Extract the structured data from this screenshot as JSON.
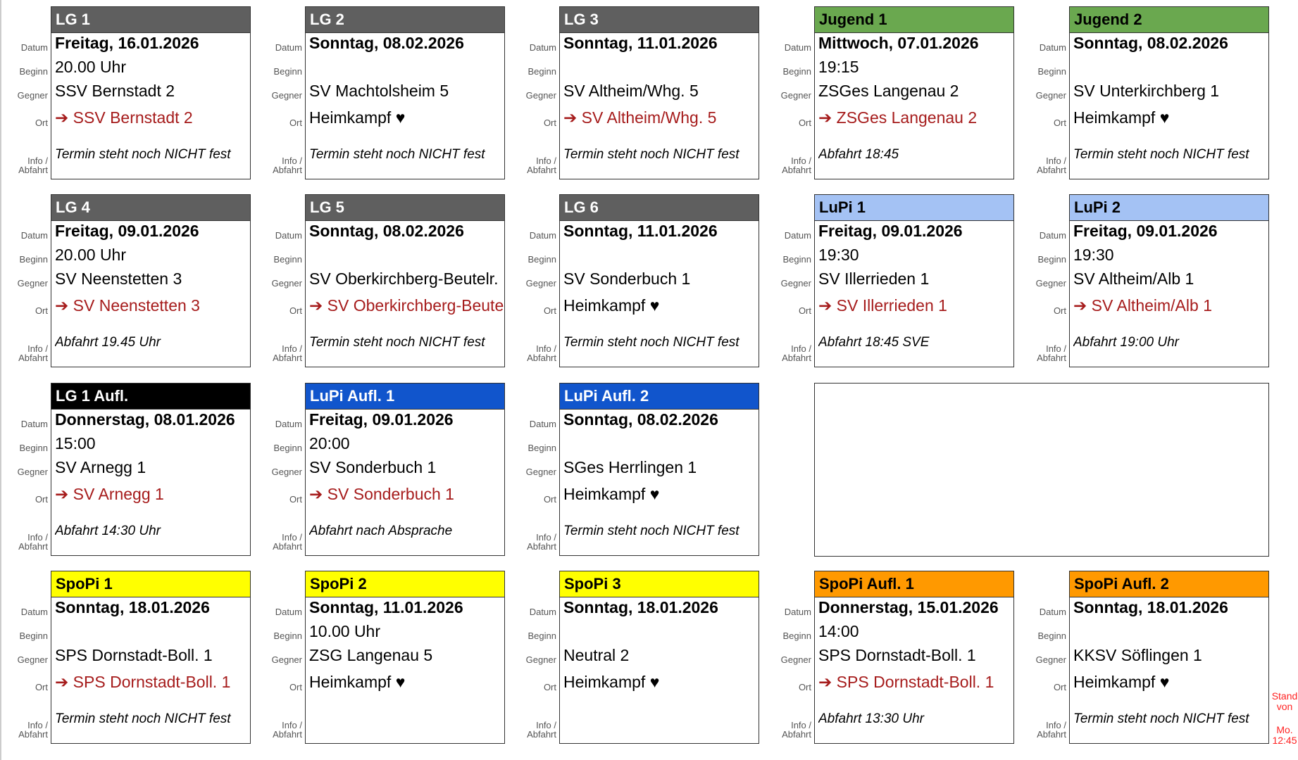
{
  "labels": {
    "date": "Datum",
    "time": "Beginn",
    "opponent": "Gegner",
    "location": "Ort",
    "info": "Info /",
    "info2": "Abfahrt"
  },
  "away_arrow": "➔",
  "home_heart": "♥",
  "cards": [
    {
      "title": "LG 1",
      "header_bg": "#5f5f5f",
      "header_fg": "#ffffff",
      "date": "Freitag, 16.01.2026",
      "time": "20.00 Uhr",
      "opponent": "SSV Bernstadt 2",
      "location": "SSV Bernstadt 2",
      "home": false,
      "info": "Termin steht noch NICHT fest"
    },
    {
      "title": "LG 2",
      "header_bg": "#5f5f5f",
      "header_fg": "#ffffff",
      "date": "Sonntag, 08.02.2026",
      "time": "",
      "opponent": "SV Machtolsheim 5",
      "location": "Heimkampf",
      "home": true,
      "info": "Termin steht noch NICHT fest"
    },
    {
      "title": "LG 3",
      "header_bg": "#5f5f5f",
      "header_fg": "#ffffff",
      "date": "Sonntag, 11.01.2026",
      "time": "",
      "opponent": "SV Altheim/Whg. 5",
      "location": "SV Altheim/Whg. 5",
      "home": false,
      "info": "Termin steht noch NICHT fest"
    },
    {
      "title": "Jugend 1",
      "header_bg": "#6aa84f",
      "header_fg": "#000000",
      "date": "Mittwoch, 07.01.2026",
      "time": "19:15",
      "opponent": "ZSGes Langenau 2",
      "location": "ZSGes Langenau 2",
      "home": false,
      "info": "Abfahrt 18:45"
    },
    {
      "title": "Jugend 2",
      "header_bg": "#6aa84f",
      "header_fg": "#000000",
      "date": "Sonntag, 08.02.2026",
      "time": "",
      "opponent": "SV Unterkirchberg 1",
      "location": "Heimkampf",
      "home": true,
      "info": "Termin steht noch NICHT fest"
    },
    {
      "title": "LG 4",
      "header_bg": "#5f5f5f",
      "header_fg": "#ffffff",
      "date": "Freitag, 09.01.2026",
      "time": "20.00 Uhr",
      "opponent": "SV Neenstetten 3",
      "location": "SV Neenstetten 3",
      "home": false,
      "info": "Abfahrt 19.45 Uhr"
    },
    {
      "title": "LG 5",
      "header_bg": "#5f5f5f",
      "header_fg": "#ffffff",
      "date": "Sonntag, 08.02.2026",
      "time": "",
      "opponent": "SV Oberkirchberg-Beutelr.",
      "location": "SV Oberkirchberg-Beutelr.",
      "home": false,
      "info": "Termin steht noch NICHT fest"
    },
    {
      "title": "LG 6",
      "header_bg": "#5f5f5f",
      "header_fg": "#ffffff",
      "date": "Sonntag, 11.01.2026",
      "time": "",
      "opponent": "SV Sonderbuch 1",
      "location": "Heimkampf",
      "home": true,
      "info": "Termin steht noch NICHT fest"
    },
    {
      "title": "LuPi 1",
      "header_bg": "#a4c2f4",
      "header_fg": "#000000",
      "date": "Freitag, 09.01.2026",
      "time": "19:30",
      "opponent": "SV Illerrieden 1",
      "location": "SV Illerrieden 1",
      "home": false,
      "info": "Abfahrt 18:45 SVE"
    },
    {
      "title": "LuPi 2",
      "header_bg": "#a4c2f4",
      "header_fg": "#000000",
      "date": "Freitag, 09.01.2026",
      "time": "19:30",
      "opponent": "SV Altheim/Alb 1",
      "location": "SV Altheim/Alb 1",
      "home": false,
      "info": "Abfahrt 19:00 Uhr"
    },
    {
      "title": "LG 1 Aufl.",
      "header_bg": "#000000",
      "header_fg": "#ffffff",
      "date": "Donnerstag, 08.01.2026",
      "time": "15:00",
      "opponent": "SV Arnegg 1",
      "location": "SV Arnegg 1",
      "home": false,
      "info": "Abfahrt 14:30 Uhr"
    },
    {
      "title": "LuPi Aufl. 1",
      "header_bg": "#1155cc",
      "header_fg": "#ffffff",
      "date": "Freitag, 09.01.2026",
      "time": "20:00",
      "opponent": "SV Sonderbuch 1",
      "location": "SV Sonderbuch 1",
      "home": false,
      "info": "Abfahrt nach Absprache"
    },
    {
      "title": "LuPi Aufl. 2",
      "header_bg": "#1155cc",
      "header_fg": "#ffffff",
      "date": "Sonntag, 08.02.2026",
      "time": "",
      "opponent": "SGes Herrlingen 1",
      "location": "Heimkampf",
      "home": true,
      "info": "Termin steht noch NICHT fest"
    },
    null,
    null,
    {
      "title": "SpoPi 1",
      "header_bg": "#ffff00",
      "header_fg": "#000000",
      "date": "Sonntag, 18.01.2026",
      "time": "",
      "opponent": "SPS Dornstadt-Boll. 1",
      "location": "SPS Dornstadt-Boll. 1",
      "home": false,
      "info": "Termin steht noch NICHT fest"
    },
    {
      "title": "SpoPi 2",
      "header_bg": "#ffff00",
      "header_fg": "#000000",
      "date": "Sonntag, 11.01.2026",
      "time": "10.00 Uhr",
      "opponent": "ZSG Langenau 5",
      "location": "Heimkampf",
      "home": true,
      "info": ""
    },
    {
      "title": "SpoPi 3",
      "header_bg": "#ffff00",
      "header_fg": "#000000",
      "date": "Sonntag, 18.01.2026",
      "time": "",
      "opponent": "Neutral 2",
      "location": "Heimkampf",
      "home": true,
      "info": ""
    },
    {
      "title": "SpoPi Aufl. 1",
      "header_bg": "#ff9900",
      "header_fg": "#000000",
      "date": "Donnerstag, 15.01.2026",
      "time": "14:00",
      "opponent": "SPS Dornstadt-Boll. 1",
      "location": "SPS Dornstadt-Boll. 1",
      "home": false,
      "info": "Abfahrt 13:30 Uhr"
    },
    {
      "title": "SpoPi Aufl. 2",
      "header_bg": "#ff9900",
      "header_fg": "#000000",
      "date": "Sonntag, 18.01.2026",
      "time": "",
      "opponent": "KKSV Söflingen 1",
      "location": "Heimkampf",
      "home": true,
      "info": "Termin steht noch NICHT fest"
    }
  ],
  "stand": {
    "line1": "Stand",
    "line2": "von",
    "line3": "Mo.",
    "line4": "12:45"
  }
}
